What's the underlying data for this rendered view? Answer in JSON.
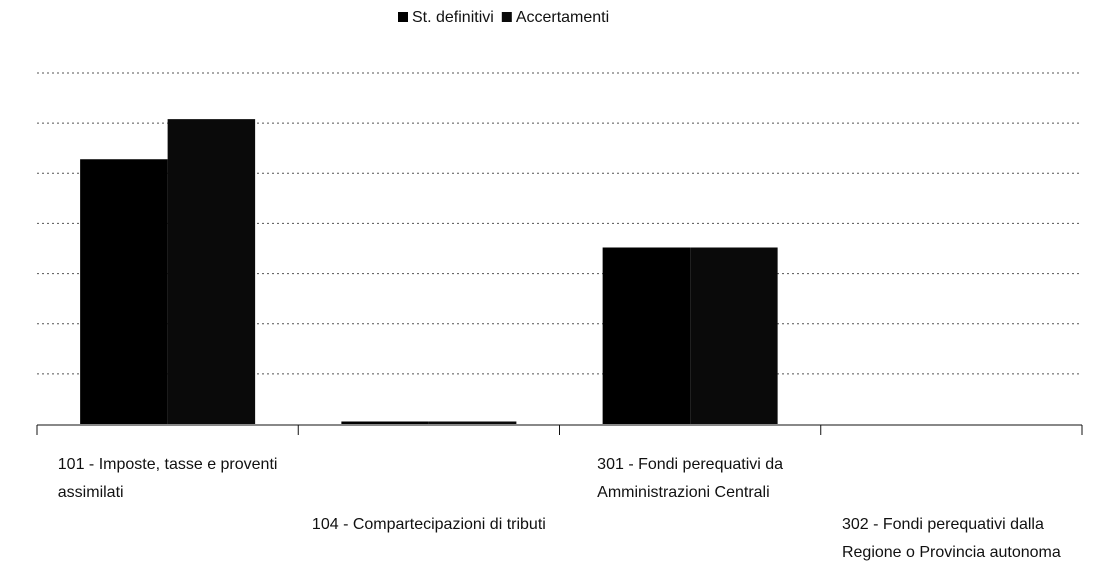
{
  "chart_data": {
    "type": "bar",
    "categories": [
      [
        "101 - Imposte, tasse e proventi",
        "assimilati"
      ],
      [
        "104 - Compartecipazioni di tributi"
      ],
      [
        "301 - Fondi perequativi da",
        "Amministrazioni Centrali"
      ],
      [
        "302 - Fondi perequativi dalla",
        "Regione o Provincia autonoma"
      ]
    ],
    "series": [
      {
        "name": "St. definitivi",
        "color": "#000000",
        "values": [
          5.28,
          0.05,
          3.52,
          0
        ]
      },
      {
        "name": "Accertamenti",
        "color": "#0a0a0a",
        "values": [
          6.08,
          0.05,
          3.52,
          0
        ]
      }
    ],
    "ylim": [
      0,
      7
    ],
    "yticks": [
      1,
      2,
      3,
      4,
      5,
      6,
      7
    ],
    "grid": true,
    "legend": "top"
  }
}
